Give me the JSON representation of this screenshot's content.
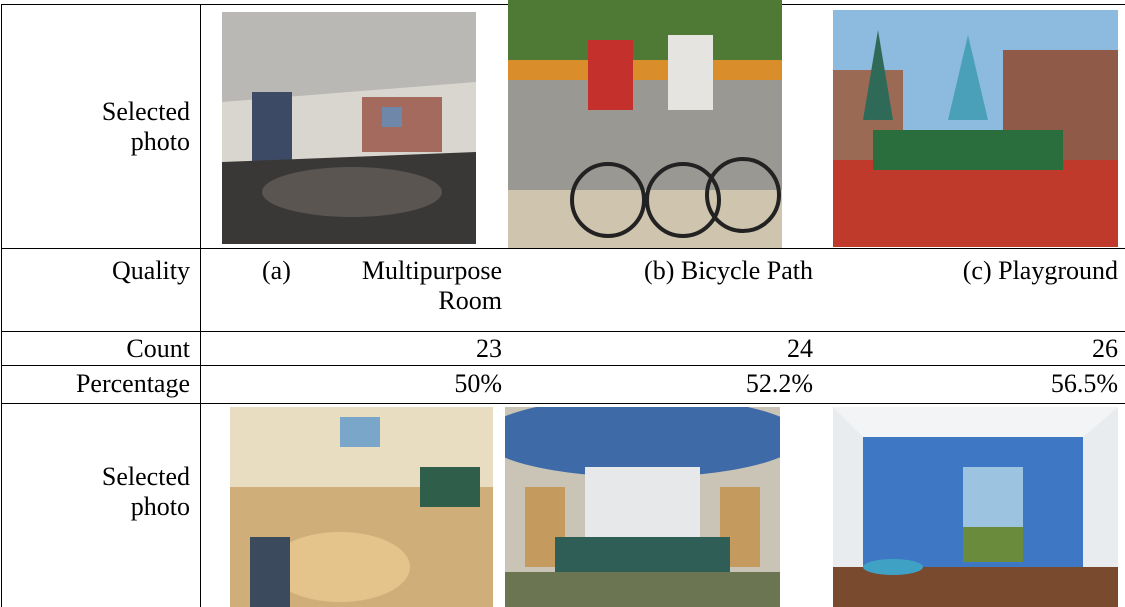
{
  "table": {
    "rows": [
      [
        "Selected photo"
      ],
      [
        "Quality",
        "(a) Multipurpose Room",
        "(b) Bicycle Path",
        "(c) Playground"
      ],
      [
        "Count",
        23,
        24,
        26
      ],
      [
        "Percentage",
        "50%",
        "52.2%",
        "56.5%"
      ],
      [
        "Selected photo"
      ]
    ]
  }
}
